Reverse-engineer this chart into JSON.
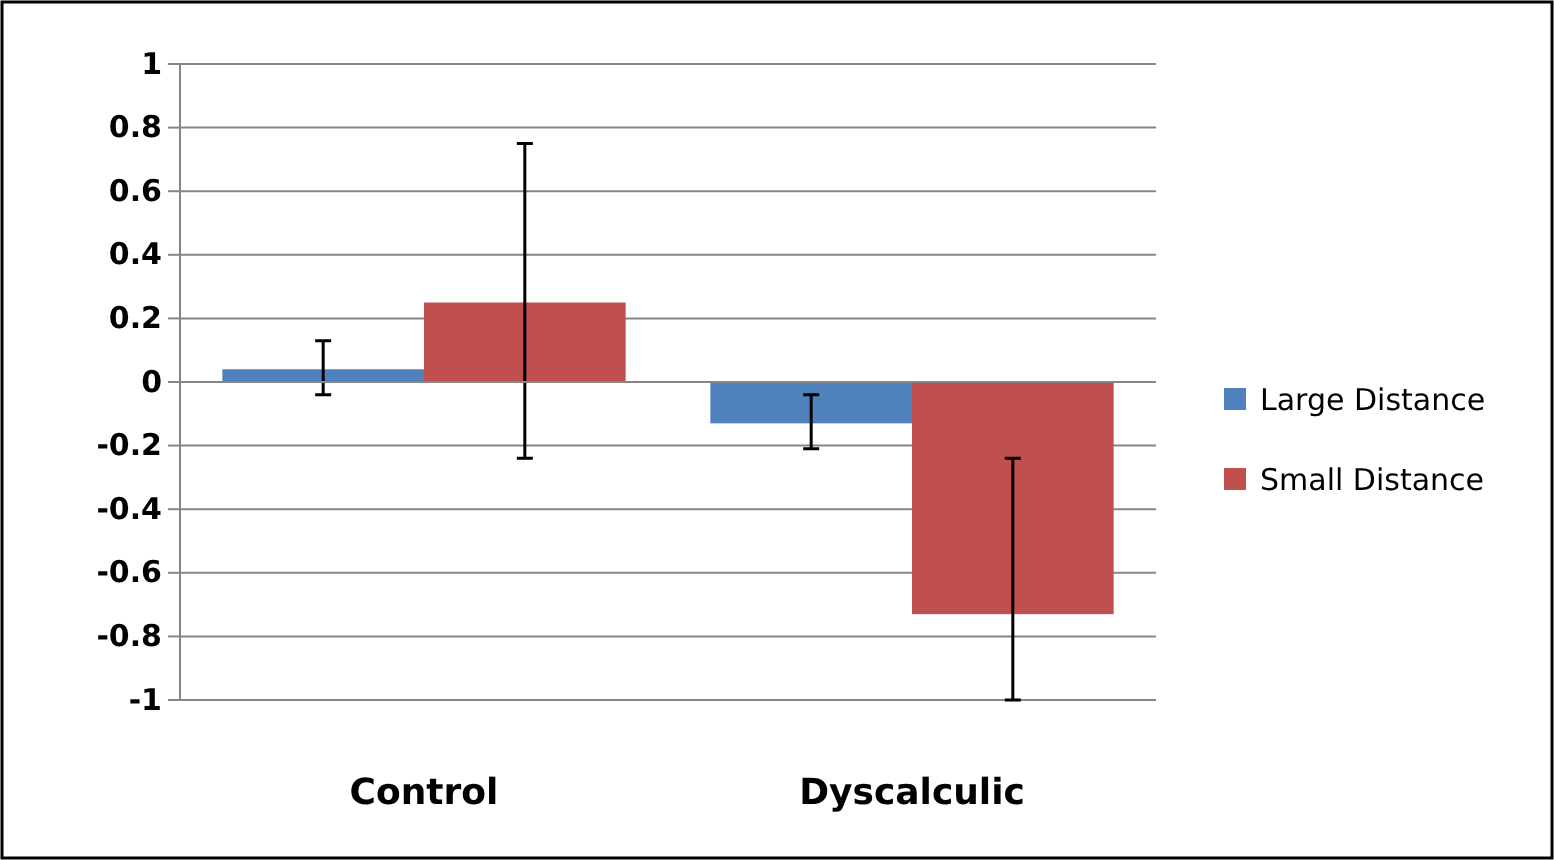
{
  "chart_data": {
    "type": "bar",
    "categories": [
      "Control",
      "Dyscalculic"
    ],
    "series": [
      {
        "name": "Large Distance",
        "color": "#4f81bd",
        "values": [
          0.04,
          -0.13
        ],
        "errors": [
          [
            -0.04,
            0.13
          ],
          [
            -0.21,
            -0.04
          ]
        ]
      },
      {
        "name": "Small Distance",
        "color": "#c0504d",
        "values": [
          0.25,
          -0.73
        ],
        "errors": [
          [
            -0.24,
            0.75
          ],
          [
            -1,
            -0.24
          ]
        ]
      }
    ],
    "ylim": [
      -1,
      1
    ],
    "yticks": [
      -1,
      -0.8,
      -0.6,
      -0.4,
      -0.2,
      0,
      0.2,
      0.4,
      0.6,
      0.8,
      1
    ],
    "grid": "y",
    "legend": "right"
  }
}
